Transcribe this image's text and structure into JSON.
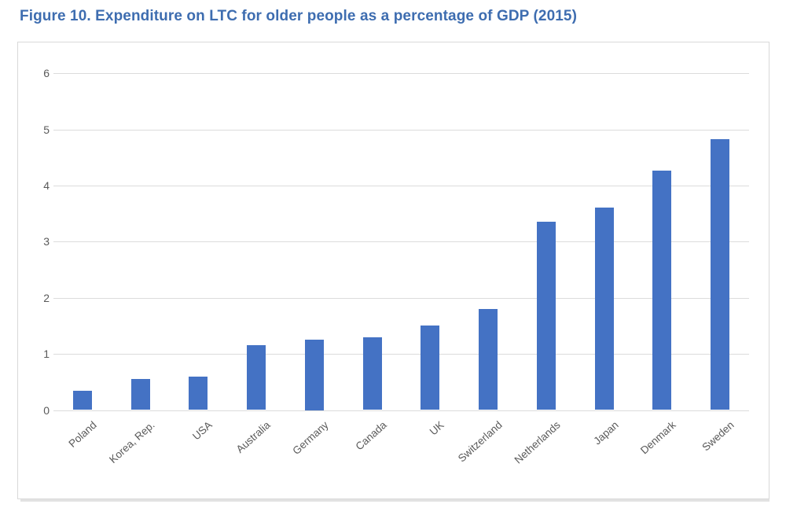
{
  "figure": {
    "title": "Figure 10. Expenditure on LTC for older people as a percentage of GDP (2015)",
    "title_color": "#3e6db0"
  },
  "chart_data": {
    "type": "bar",
    "title": "Figure 10. Expenditure on LTC for older people as a percentage of GDP (2015)",
    "categories": [
      "Poland",
      "Korea, Rep.",
      "USA",
      "Australia",
      "Germany",
      "Canada",
      "UK",
      "Switzerland",
      "Netherlands",
      "Japan",
      "Denmark",
      "Sweden"
    ],
    "values": [
      0.35,
      0.55,
      0.6,
      1.15,
      1.25,
      1.3,
      1.5,
      1.8,
      3.35,
      3.6,
      4.27,
      4.82
    ],
    "xlabel": "",
    "ylabel": "",
    "ylim": [
      0,
      6
    ],
    "yticks": [
      0,
      1,
      2,
      3,
      4,
      5,
      6
    ],
    "grid": true,
    "legend": "none",
    "bar_color": "#4472c4",
    "gridline_color": "#dcdcdc",
    "tick_label_color": "#595959",
    "x_label_rotation_deg": -42
  }
}
